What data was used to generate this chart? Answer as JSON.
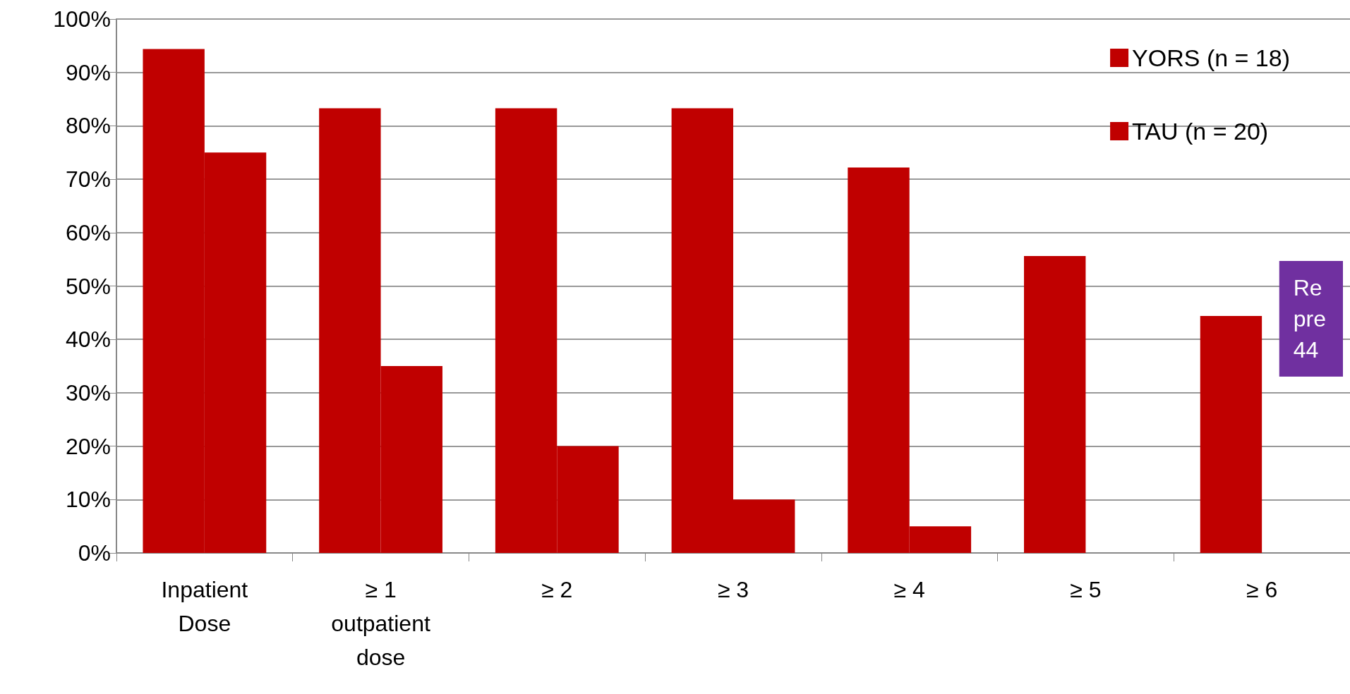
{
  "chart_data": {
    "type": "bar",
    "categories": [
      "Inpatient\nDose",
      "≥ 1\noutpatient\ndose",
      "≥ 2",
      "≥ 3",
      "≥ 4",
      "≥ 5",
      "≥ 6"
    ],
    "series": [
      {
        "name": "YORS (n = 18)",
        "color": "#c00000",
        "values": [
          94.4,
          83.3,
          83.3,
          83.3,
          72.2,
          55.6,
          44.4
        ]
      },
      {
        "name": "TAU (n = 20)",
        "color": "#c00000",
        "values": [
          75,
          35,
          20,
          10,
          5,
          0,
          0
        ]
      }
    ],
    "ylim": [
      0,
      100
    ],
    "yticks": [
      {
        "value": 0,
        "label": "0%"
      },
      {
        "value": 10,
        "label": "10%"
      },
      {
        "value": 20,
        "label": "20%"
      },
      {
        "value": 30,
        "label": "30%"
      },
      {
        "value": 40,
        "label": "40%"
      },
      {
        "value": 50,
        "label": "50%"
      },
      {
        "value": 60,
        "label": "60%"
      },
      {
        "value": 70,
        "label": "70%"
      },
      {
        "value": 80,
        "label": "80%"
      },
      {
        "value": 90,
        "label": "90%"
      },
      {
        "value": 100,
        "label": "100%"
      }
    ],
    "grid": "y",
    "legend": "top right",
    "annotations": [
      "Re\npre\n44"
    ]
  }
}
